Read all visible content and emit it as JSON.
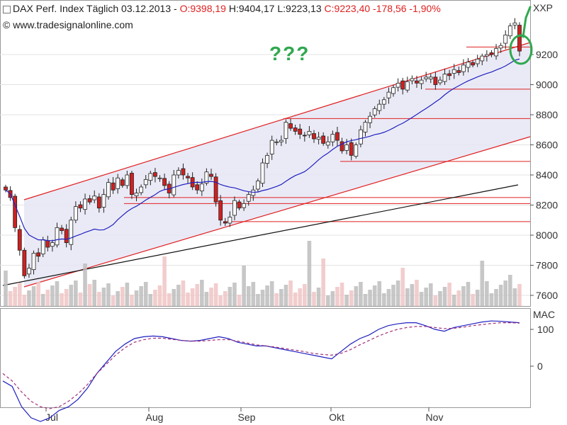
{
  "header": {
    "instrument": "DAX Perf. Index Täglich",
    "date": "03.12.2013",
    "ohlc": "O:9398,19 H:9404,17 L:9223,13 C:9223,40 -178,56 -1,90%",
    "o": "O:9398,19",
    "h": "H:9404,17",
    "l": "L:9223,13",
    "c": "C:9223,40 -178,56 -1,90%"
  },
  "source": "© www.tradesignalonline.com",
  "annotation": "???",
  "symbol_label": "XXP",
  "colors": {
    "background": "#ffffff",
    "plot_bg": "#ffffff",
    "channel_fill": "#e6e6f5",
    "channel_line": "#e02020",
    "bull_candle": "#ffffff",
    "bear_candle": "#d02020",
    "ma_short": "#2020c0",
    "ma_long": "#111111",
    "volume_up": "#bdbdbd",
    "volume_down": "#f0c4c4",
    "annotation": "#2fa84f",
    "macd_signal": "#a0307a"
  },
  "chart_data": [
    {
      "type": "candlestick",
      "title": "DAX Perf. Index Täglich",
      "x_tick_labels": [
        "Jul",
        "Aug",
        "Sep",
        "Okt",
        "Nov"
      ],
      "y_ticks": [
        7600,
        7800,
        8000,
        8200,
        8400,
        8600,
        8800,
        9000,
        9200
      ],
      "y_tick_labels": [
        "7600",
        "7800",
        "8000",
        "8200",
        "8400",
        "8600",
        "8800",
        "9000",
        "9200"
      ],
      "ylim": [
        7550,
        9450
      ],
      "last": {
        "open": 9398.19,
        "high": 9404.17,
        "low": 9223.13,
        "close": 9223.4,
        "change": -178.56,
        "change_pct": -1.9
      },
      "support_resistance_levels": [
        9250,
        8970,
        8775,
        8490,
        8250,
        8210,
        8090
      ],
      "closes": [
        8300,
        8250,
        8050,
        7900,
        7730,
        7780,
        7880,
        7860,
        7970,
        7920,
        7950,
        8050,
        8030,
        7950,
        8100,
        8190,
        8180,
        8240,
        8220,
        8260,
        8180,
        8270,
        8350,
        8300,
        8380,
        8330,
        8400,
        8270,
        8280,
        8320,
        8370,
        8410,
        8390,
        8380,
        8330,
        8280,
        8400,
        8430,
        8400,
        8380,
        8320,
        8300,
        8340,
        8420,
        8390,
        8220,
        8100,
        8080,
        8120,
        8230,
        8180,
        8210,
        8270,
        8300,
        8360,
        8480,
        8530,
        8630,
        8620,
        8630,
        8750,
        8710,
        8690,
        8670,
        8660,
        8690,
        8640,
        8650,
        8610,
        8620,
        8670,
        8630,
        8560,
        8600,
        8530,
        8600,
        8700,
        8750,
        8790,
        8840,
        8870,
        8900,
        8950,
        8980,
        9010,
        8970,
        9020,
        9040,
        9010,
        9030,
        9050,
        9050,
        9000,
        9030,
        9070,
        9060,
        9100,
        9080,
        9130,
        9150,
        9130,
        9170,
        9190,
        9200,
        9200,
        9240,
        9260,
        9330,
        9390,
        9410,
        9223
      ],
      "volume_tick_labels": [],
      "panel_2": {
        "title": "MAC",
        "y_ticks": [
          100,
          0
        ],
        "y_tick_labels": [
          "100",
          "0"
        ],
        "series": [
          {
            "values": [
              -40,
              -55,
              -110,
              -140,
              -150,
              -140,
              -120,
              -110,
              -90,
              -60,
              -20,
              10,
              40,
              60,
              75,
              80,
              82,
              80,
              75,
              70,
              68,
              70,
              75,
              80,
              75,
              65,
              60,
              55,
              55,
              50,
              45,
              40,
              35,
              30,
              25,
              20,
              40,
              60,
              75,
              85,
              100,
              110,
              115,
              118,
              118,
              110,
              100,
              95,
              105,
              110,
              115,
              120,
              123,
              122,
              120,
              118
            ]
          },
          {
            "values": [
              -20,
              -40,
              -70,
              -95,
              -110,
              -115,
              -110,
              -95,
              -75,
              -50,
              -20,
              5,
              30,
              50,
              65,
              72,
              76,
              76,
              73,
              70,
              68,
              68,
              70,
              72,
              72,
              68,
              63,
              58,
              55,
              52,
              48,
              44,
              40,
              35,
              32,
              30,
              35,
              45,
              58,
              70,
              82,
              92,
              100,
              105,
              108,
              108,
              105,
              102,
              103,
              106,
              110,
              113,
              116,
              118,
              118,
              117
            ]
          }
        ]
      }
    }
  ]
}
